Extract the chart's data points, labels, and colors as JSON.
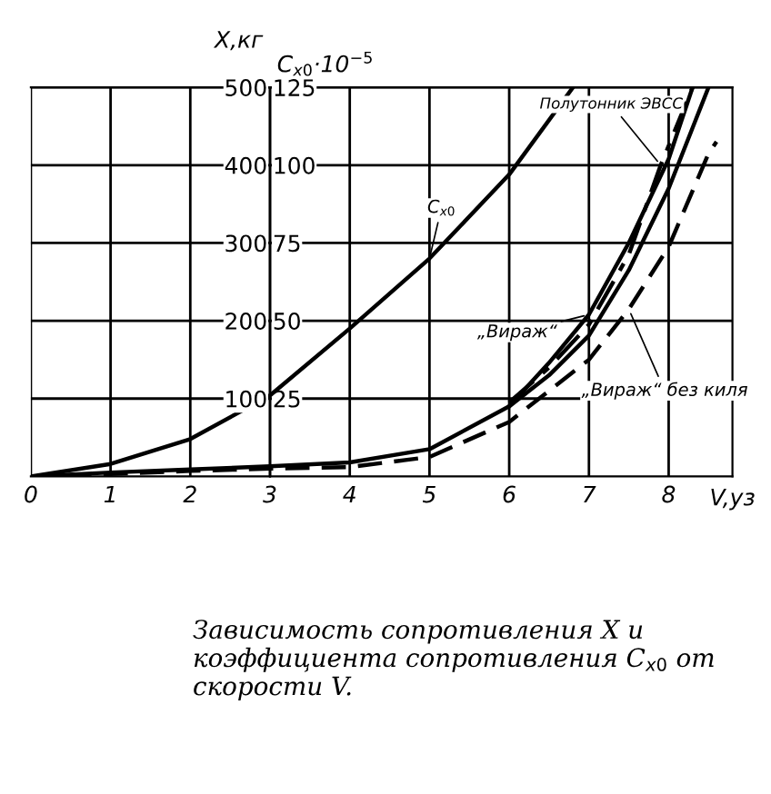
{
  "chart_data": {
    "type": "line",
    "xlabel": "V,уз",
    "ylabel": "X,кг",
    "y2label": "C$_{x0}$·10$^{−5}$",
    "xlim": [
      0,
      8.8
    ],
    "xticks": [
      0,
      1,
      2,
      3,
      4,
      5,
      6,
      7,
      8
    ],
    "ylim": [
      0,
      500
    ],
    "yticks": [
      100,
      200,
      300,
      400,
      500
    ],
    "y2lim": [
      0,
      125
    ],
    "y2ticks": [
      25,
      50,
      75,
      100,
      125
    ],
    "grid": true,
    "marker": "none",
    "series": [
      {
        "name": "C$_{x0}$",
        "axis": "y2",
        "color": "#000000",
        "line_style": "solid",
        "x": [
          0,
          1,
          2,
          3,
          4,
          5,
          6,
          6.8
        ],
        "values": [
          0,
          4,
          12,
          26,
          47.5,
          70,
          97,
          125
        ]
      },
      {
        "name": "Полутонник ЭВСС",
        "color": "#000000",
        "line_style": "dashdot",
        "x": [
          6,
          6.5,
          7,
          7.5,
          7.9,
          8.3
        ],
        "values": [
          95,
          140,
          195,
          285,
          400,
          500
        ]
      },
      {
        "name": "„Вираж“",
        "color": "#000000",
        "line_style": "solid",
        "x": [
          0,
          1,
          2,
          3,
          4,
          5,
          6,
          6.5,
          7,
          7.5,
          8,
          8.3
        ],
        "values": [
          0,
          5,
          9,
          13,
          18,
          35,
          90,
          146,
          208,
          300,
          408,
          500
        ]
      },
      {
        "color": "#000000",
        "line_style": "solid",
        "x": [
          6,
          6.5,
          7,
          7.5,
          8,
          8.5
        ],
        "values": [
          90,
          130,
          181,
          265,
          370,
          500
        ]
      },
      {
        "name": "„Вираж“ без киля",
        "color": "#000000",
        "line_style": "dashed",
        "x": [
          0,
          1,
          2,
          3,
          4,
          5,
          6,
          7,
          7.5,
          8,
          8.5,
          8.6
        ],
        "values": [
          0,
          3,
          7,
          10,
          12,
          25,
          70,
          150,
          215,
          295,
          415,
          430
        ]
      }
    ],
    "annotations": [
      "Зависимость сопротивления X и коэффициента сопротивления C$_{x0}$ от скорости V."
    ]
  }
}
